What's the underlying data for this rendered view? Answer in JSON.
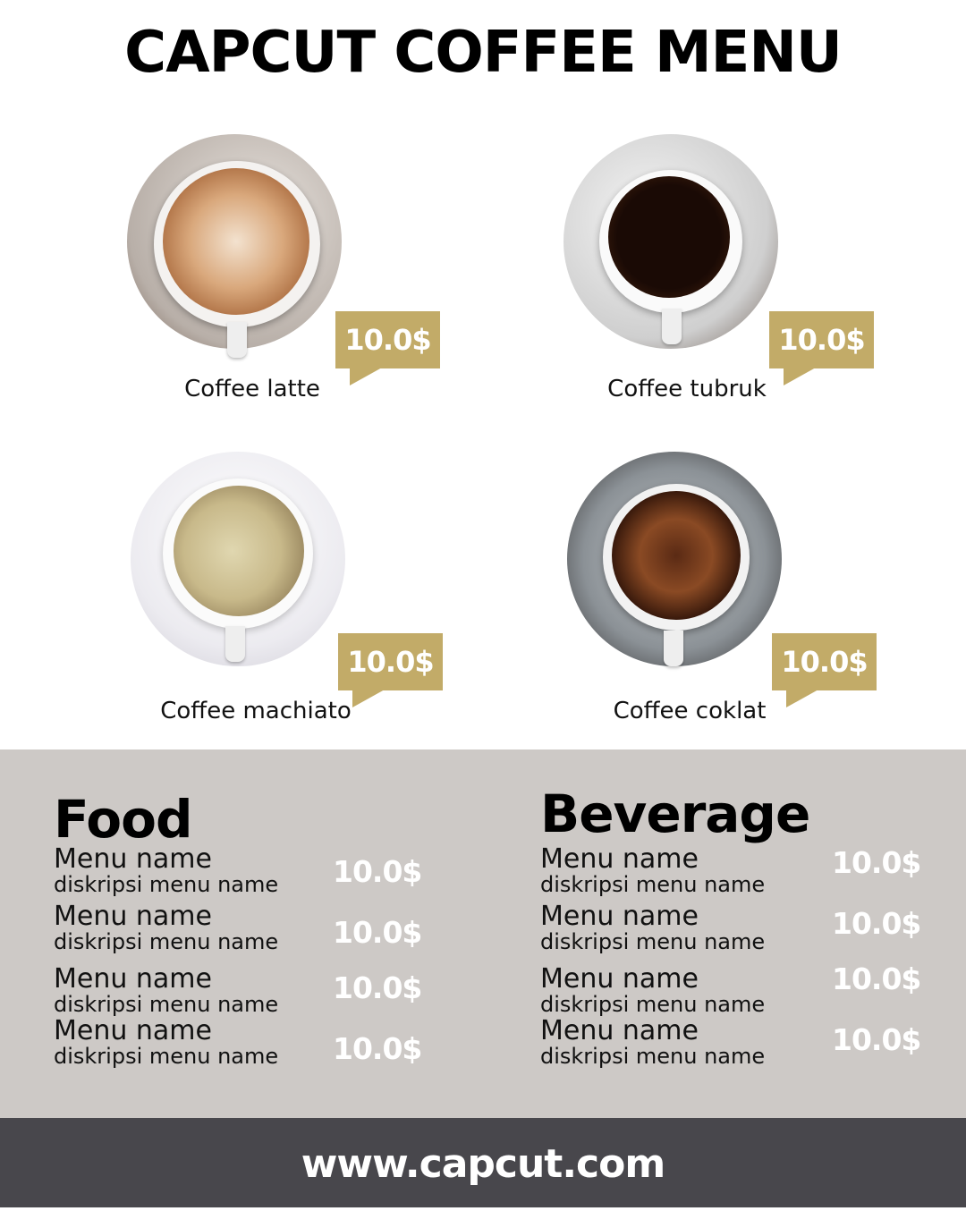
{
  "title": "CAPCUT COFFEE MENU",
  "colors": {
    "gold": "#c2ab68",
    "panel": "#cdc9c6",
    "footer": "#48474c"
  },
  "coffees": [
    {
      "name": "Coffee latte",
      "price": "10.0$"
    },
    {
      "name": "Coffee tubruk",
      "price": "10.0$"
    },
    {
      "name": "Coffee machiato",
      "price": "10.0$"
    },
    {
      "name": "Coffee coklat",
      "price": "10.0$"
    }
  ],
  "food": {
    "title": "Food",
    "items": [
      {
        "name": "Menu name",
        "desc": "diskripsi menu name",
        "price": "10.0$"
      },
      {
        "name": "Menu name",
        "desc": "diskripsi menu name",
        "price": "10.0$"
      },
      {
        "name": "Menu name",
        "desc": "diskripsi menu name",
        "price": "10.0$"
      },
      {
        "name": "Menu name",
        "desc": "diskripsi menu name",
        "price": "10.0$"
      }
    ]
  },
  "beverage": {
    "title": "Beverage",
    "items": [
      {
        "name": "Menu name",
        "desc": "diskripsi menu name",
        "price": "10.0$"
      },
      {
        "name": "Menu name",
        "desc": "diskripsi menu name",
        "price": "10.0$"
      },
      {
        "name": "Menu name",
        "desc": "diskripsi menu name",
        "price": "10.0$"
      },
      {
        "name": "Menu name",
        "desc": "diskripsi menu name",
        "price": "10.0$"
      }
    ]
  },
  "footer": {
    "url": "www.capcut.com"
  }
}
